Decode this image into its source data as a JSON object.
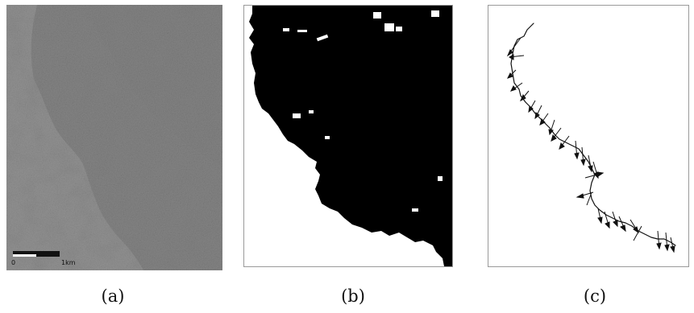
{
  "figure": {
    "panels": [
      {
        "caption": "(a)",
        "scale_bar": {
          "start": "0",
          "end": "1km"
        }
      },
      {
        "caption": "(b)"
      },
      {
        "caption": "(c)"
      }
    ],
    "colors": {
      "image_light": "#b9b9b9",
      "image_dark": "#2e2e2e",
      "mask_black": "#000000",
      "frame": "#9a9a9a"
    }
  }
}
